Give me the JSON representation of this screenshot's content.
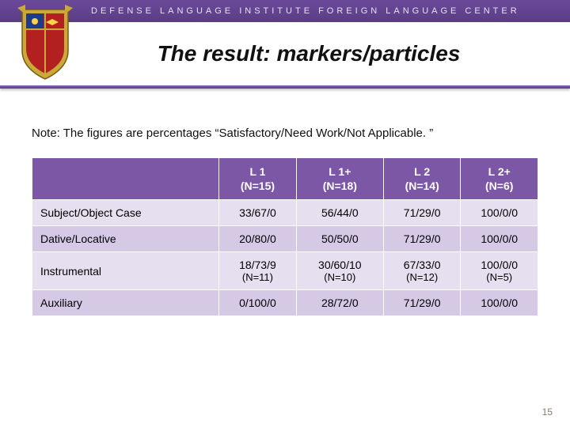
{
  "header": {
    "org_text": "DEFENSE LANGUAGE INSTITUTE FOREIGN LANGUAGE CENTER"
  },
  "title": "The result: markers/particles",
  "note": "Note: The figures are percentages “Satisfactory/Need Work/Not Applicable. ”",
  "table": {
    "columns": [
      {
        "label_top": "L 1",
        "label_bottom": "(N=15)"
      },
      {
        "label_top": "L 1+",
        "label_bottom": "(N=18)"
      },
      {
        "label_top": "L 2",
        "label_bottom": "(N=14)"
      },
      {
        "label_top": "L 2+",
        "label_bottom": "(N=6)"
      }
    ],
    "rows": [
      {
        "label": "Subject/Object Case",
        "cells": [
          {
            "main": "33/67/0"
          },
          {
            "main": "56/44/0"
          },
          {
            "main": "71/29/0"
          },
          {
            "main": "100/0/0"
          }
        ]
      },
      {
        "label": "Dative/Locative",
        "cells": [
          {
            "main": "20/80/0"
          },
          {
            "main": "50/50/0"
          },
          {
            "main": "71/29/0"
          },
          {
            "main": "100/0/0"
          }
        ]
      },
      {
        "label": "Instrumental",
        "cells": [
          {
            "main": "18/73/9",
            "sub": "(N=11)"
          },
          {
            "main": "30/60/10",
            "sub": "(N=10)"
          },
          {
            "main": "67/33/0",
            "sub": "(N=12)"
          },
          {
            "main": "100/0/0",
            "sub": "(N=5)"
          }
        ]
      },
      {
        "label": "Auxiliary",
        "cells": [
          {
            "main": "0/100/0"
          },
          {
            "main": "28/72/0"
          },
          {
            "main": "71/29/0"
          },
          {
            "main": "100/0/0"
          }
        ]
      }
    ]
  },
  "page_number": "15",
  "colors": {
    "banner_start": "#6b4a9a",
    "banner_end": "#5a3d85",
    "header_th": "#7b57a6",
    "row_odd": "#e6dff0",
    "row_even": "#d5c9e6"
  }
}
